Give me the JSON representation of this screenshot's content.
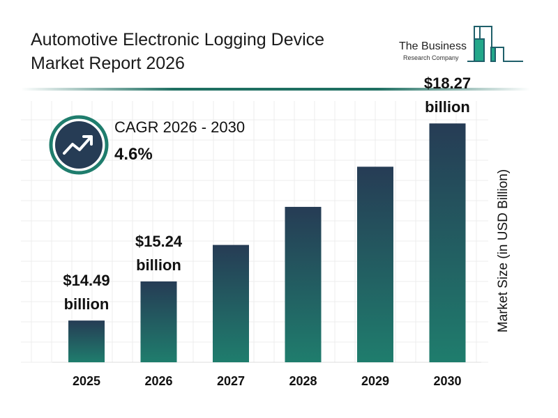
{
  "header": {
    "title_line1": "Automotive Electronic Logging Device",
    "title_line2": "Market Report 2026"
  },
  "logo": {
    "line1": "The Business",
    "line2": "Research Company",
    "colors": {
      "outline": "#1f5f6a",
      "fill": "#23a88a"
    }
  },
  "cagr": {
    "label": "CAGR 2026 - 2030",
    "value": "4.6%",
    "icon": "trending-up-icon"
  },
  "colors": {
    "bar_top": "#263c55",
    "bar_bottom": "#1f7d6d",
    "accent": "#1f6f62",
    "grid": "#ececec"
  },
  "chart_data": {
    "type": "bar",
    "categories": [
      "2025",
      "2026",
      "2027",
      "2028",
      "2029",
      "2030"
    ],
    "values": [
      14.49,
      15.24,
      15.94,
      16.67,
      17.44,
      18.27
    ],
    "data_labels": [
      [
        "$14.49",
        "billion"
      ],
      [
        "$15.24",
        "billion"
      ],
      null,
      null,
      null,
      [
        "$18.27",
        "billion"
      ]
    ],
    "ylabel": "Market Size (in USD Billion)",
    "xlabel": "",
    "ylim": [
      13.69,
      18.7
    ],
    "grid": true,
    "legend": "none"
  }
}
